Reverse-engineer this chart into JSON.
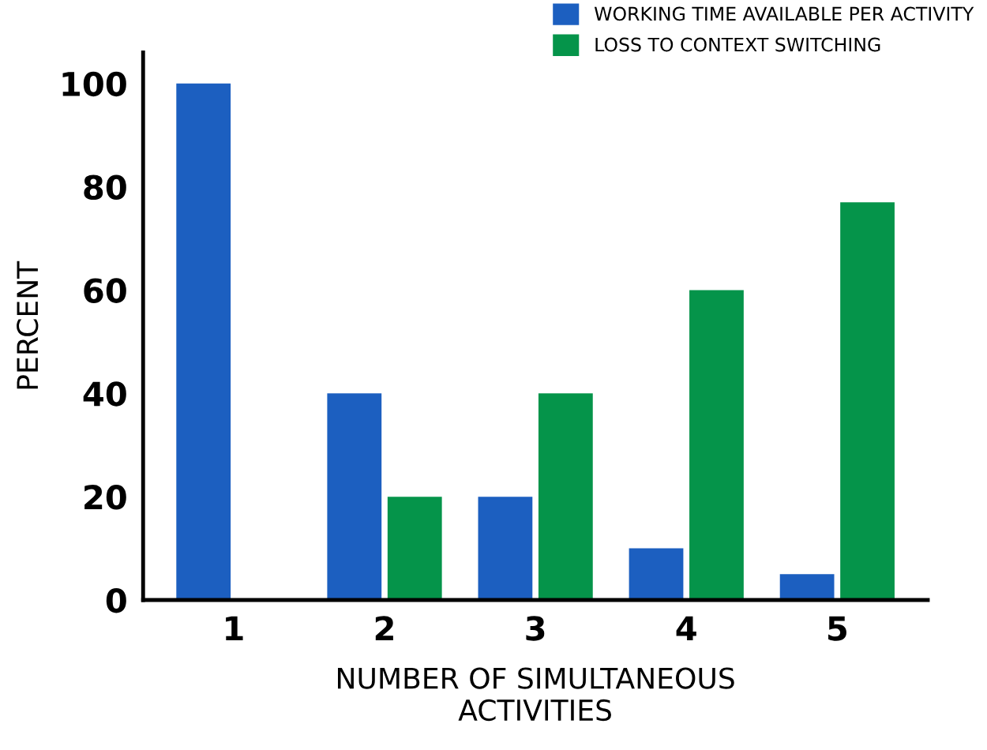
{
  "chart_data": {
    "type": "bar",
    "xlabel": "NUMBER OF SIMULTANEOUS\nACTIVITIES",
    "ylabel": "PERCENT",
    "categories": [
      "1",
      "2",
      "3",
      "4",
      "5"
    ],
    "series": [
      {
        "name": "WORKING TIME AVAILABLE PER ACTIVITY",
        "color": "#1c5fc0",
        "values": [
          100,
          40,
          20,
          10,
          5
        ]
      },
      {
        "name": "LOSS TO CONTEXT SWITCHING",
        "color": "#05944a",
        "values": [
          null,
          20,
          40,
          60,
          77
        ]
      }
    ],
    "ylim": [
      0,
      106
    ],
    "yticks": [
      0,
      20,
      40,
      60,
      80,
      100
    ],
    "grid": false,
    "legend": "top right"
  }
}
